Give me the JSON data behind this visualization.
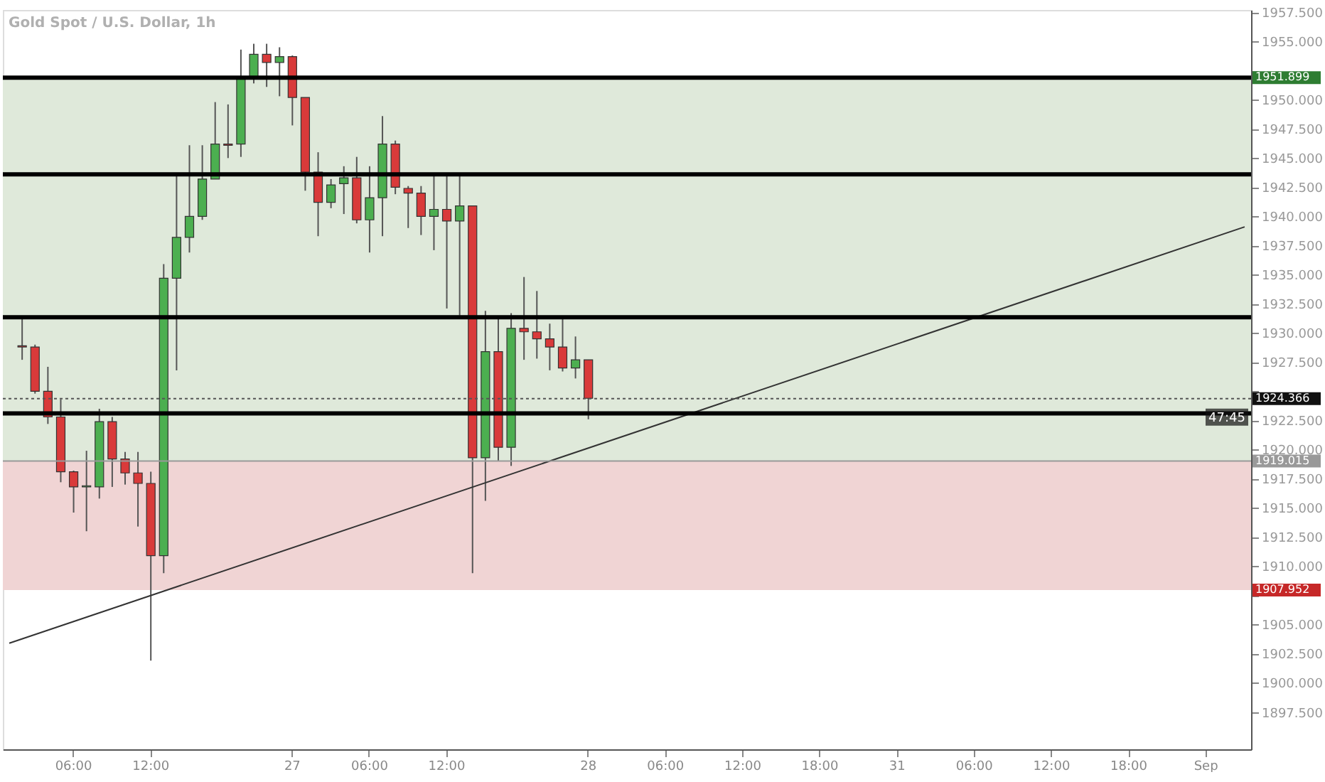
{
  "chart_data": {
    "type": "candlestick",
    "title": "Gold Spot / U.S. Dollar, 1h",
    "categories": [
      null,
      null,
      null,
      null,
      null,
      "06:00",
      null,
      null,
      null,
      null,
      null,
      "12:00",
      null,
      null,
      null,
      null,
      null,
      null,
      null,
      null,
      null,
      null,
      "27",
      null,
      null,
      null,
      null,
      null,
      "06:00",
      null,
      null,
      null,
      null,
      null,
      "12:00",
      null,
      null,
      null,
      null,
      null,
      null,
      null,
      null,
      null,
      null,
      "28",
      null,
      null,
      null,
      null,
      null,
      "06:00",
      null,
      null,
      null,
      null,
      null,
      "12:00",
      null,
      null,
      null,
      null,
      null,
      "18:00",
      null,
      null,
      null,
      null,
      null,
      "31",
      null,
      null,
      null,
      null,
      null,
      "06:00",
      null,
      null,
      null,
      null,
      null,
      "12:00",
      null,
      null,
      null,
      null,
      null,
      "18:00",
      null,
      null,
      null,
      null,
      null,
      "Sep",
      null,
      null,
      null
    ],
    "ohlc": [
      null,
      [
        1928.9,
        1931.3,
        1927.7,
        1928.8
      ],
      [
        1928.8,
        1929.0,
        1924.8,
        1925.0
      ],
      [
        1925.0,
        1927.1,
        1922.2,
        1922.8
      ],
      [
        1922.8,
        1924.3,
        1917.2,
        1918.1
      ],
      [
        1918.1,
        1918.2,
        1914.6,
        1916.8
      ],
      [
        1916.8,
        1919.9,
        1913.0,
        1916.9
      ],
      [
        1916.8,
        1923.5,
        1915.8,
        1922.4
      ],
      [
        1922.4,
        1922.8,
        1916.8,
        1919.2
      ],
      [
        1919.2,
        1919.8,
        1917.0,
        1918.0
      ],
      [
        1918.0,
        1919.8,
        1913.4,
        1917.1
      ],
      [
        1917.1,
        1918.1,
        1901.9,
        1910.9
      ],
      [
        1910.9,
        1935.9,
        1909.4,
        1934.7
      ],
      [
        1934.7,
        1943.7,
        1926.8,
        1938.2
      ],
      [
        1938.2,
        1946.1,
        1936.9,
        1940.0
      ],
      [
        1940.0,
        1946.1,
        1939.7,
        1943.2
      ],
      [
        1943.2,
        1949.8,
        1943.2,
        1946.2
      ],
      [
        1946.2,
        1949.6,
        1945.0,
        1946.1
      ],
      [
        1946.2,
        1954.3,
        1945.1,
        1952.0
      ],
      [
        1952.0,
        1954.8,
        1951.4,
        1953.9
      ],
      [
        1953.9,
        1954.8,
        1951.1,
        1953.2
      ],
      [
        1953.2,
        1954.5,
        1950.3,
        1953.7
      ],
      [
        1953.7,
        1953.8,
        1947.8,
        1950.2
      ],
      [
        1950.2,
        1950.2,
        1942.2,
        1943.8
      ],
      [
        1943.8,
        1945.5,
        1938.3,
        1941.2
      ],
      [
        1941.2,
        1943.2,
        1940.7,
        1942.7
      ],
      [
        1942.8,
        1944.3,
        1940.2,
        1943.3
      ],
      [
        1943.3,
        1945.1,
        1939.4,
        1939.7
      ],
      [
        1939.7,
        1944.3,
        1936.9,
        1941.6
      ],
      [
        1941.6,
        1948.6,
        1938.3,
        1946.2
      ],
      [
        1946.2,
        1946.5,
        1941.9,
        1942.5
      ],
      [
        1942.4,
        1942.6,
        1939.0,
        1942.0
      ],
      [
        1942.0,
        1942.6,
        1938.4,
        1940.0
      ],
      [
        1940.0,
        1943.7,
        1937.1,
        1940.6
      ],
      [
        1940.6,
        1943.7,
        1932.1,
        1939.6
      ],
      [
        1939.6,
        1943.7,
        1931.5,
        1940.9
      ],
      [
        1940.9,
        1940.9,
        1909.4,
        1919.3
      ],
      [
        1919.3,
        1931.9,
        1915.6,
        1928.4
      ],
      [
        1928.4,
        1931.3,
        1919.0,
        1920.2
      ],
      [
        1920.2,
        1931.7,
        1918.6,
        1930.4
      ],
      [
        1930.4,
        1934.8,
        1927.7,
        1930.1
      ],
      [
        1930.1,
        1933.6,
        1927.8,
        1929.5
      ],
      [
        1929.5,
        1930.8,
        1926.8,
        1928.8
      ],
      [
        1928.8,
        1931.3,
        1926.7,
        1927.0
      ],
      [
        1927.0,
        1929.7,
        1926.1,
        1927.7
      ],
      [
        1927.7,
        1927.7,
        1922.6,
        1924.4
      ],
      null,
      null,
      null,
      null,
      null,
      null,
      null,
      null,
      null,
      null,
      null,
      null,
      null,
      null,
      null,
      null,
      null,
      null,
      null,
      null,
      null,
      null,
      null,
      null,
      null,
      null,
      null,
      null,
      null,
      null,
      null,
      null,
      null,
      null,
      null,
      null,
      null,
      null,
      null,
      null,
      null,
      null,
      null,
      null,
      null,
      null,
      null,
      null,
      null,
      null,
      null
    ],
    "colors": [
      null,
      "#d93a3a",
      "#d93a3a",
      "#d93a3a",
      "#d93a3a",
      "#d93a3a",
      "#4caf50",
      "#4caf50",
      "#d93a3a",
      "#d93a3a",
      "#d93a3a",
      "#d93a3a",
      "#4caf50",
      "#4caf50",
      "#4caf50",
      "#4caf50",
      "#4caf50",
      "#d93a3a",
      "#4caf50",
      "#4caf50",
      "#d93a3a",
      "#4caf50",
      "#d93a3a",
      "#d93a3a",
      "#d93a3a",
      "#4caf50",
      "#4caf50",
      "#d93a3a",
      "#4caf50",
      "#4caf50",
      "#d93a3a",
      "#d93a3a",
      "#d93a3a",
      "#4caf50",
      "#d93a3a",
      "#4caf50",
      "#d93a3a",
      "#4caf50",
      "#d93a3a",
      "#4caf50",
      "#d93a3a",
      "#d93a3a",
      "#d93a3a",
      "#d93a3a",
      "#4caf50",
      "#d93a3a",
      null,
      null,
      null,
      null,
      null,
      null,
      null,
      null,
      null,
      null,
      null,
      null,
      null,
      null,
      null,
      null,
      null,
      null,
      null,
      null,
      null,
      null,
      null,
      null,
      null,
      null,
      null,
      null,
      null,
      null,
      null,
      null,
      null,
      null,
      null,
      null,
      null,
      null,
      null,
      null,
      null,
      null,
      null,
      null,
      null,
      null,
      null,
      null,
      null,
      null,
      null
    ],
    "series": [
      {
        "type": "line",
        "color": "#333333",
        "values": [
          1903.4,
          null,
          null,
          null,
          null,
          null,
          null,
          null,
          null,
          null,
          null,
          null,
          null,
          null,
          null,
          null,
          null,
          null,
          null,
          null,
          null,
          null,
          null,
          null,
          null,
          null,
          null,
          null,
          null,
          null,
          null,
          null,
          null,
          null,
          null,
          null,
          null,
          null,
          null,
          null,
          null,
          null,
          null,
          null,
          null,
          null,
          null,
          null,
          null,
          null,
          null,
          null,
          null,
          null,
          null,
          null,
          null,
          null,
          null,
          null,
          null,
          null,
          null,
          null,
          null,
          null,
          null,
          null,
          null,
          null,
          null,
          null,
          null,
          null,
          null,
          null,
          null,
          null,
          null,
          null,
          null,
          null,
          null,
          null,
          null,
          null,
          null,
          null,
          null,
          null,
          null,
          null,
          null,
          null,
          null,
          null,
          1939.1
        ]
      }
    ],
    "ylim": [
      1894.3,
      1957.7
    ],
    "yticks": [
      {
        "value": 1897.5,
        "label": "1897.500"
      },
      {
        "value": 1900,
        "label": "1900.000"
      },
      {
        "value": 1902.5,
        "label": "1902.500"
      },
      {
        "value": 1905,
        "label": "1905.000"
      },
      {
        "value": 1907.5,
        "label": null
      },
      {
        "value": 1910,
        "label": "1910.000"
      },
      {
        "value": 1912.5,
        "label": "1912.500"
      },
      {
        "value": 1915,
        "label": "1915.000"
      },
      {
        "value": 1917.5,
        "label": "1917.500"
      },
      {
        "value": 1920,
        "label": "1920.000"
      },
      {
        "value": 1922.5,
        "label": "1922.500"
      },
      {
        "value": 1925,
        "label": null
      },
      {
        "value": 1927.5,
        "label": "1927.500"
      },
      {
        "value": 1930,
        "label": "1930.000"
      },
      {
        "value": 1932.5,
        "label": "1932.500"
      },
      {
        "value": 1935,
        "label": "1935.000"
      },
      {
        "value": 1937.5,
        "label": "1937.500"
      },
      {
        "value": 1940,
        "label": "1940.000"
      },
      {
        "value": 1942.5,
        "label": "1942.500"
      },
      {
        "value": 1945,
        "label": "1945.000"
      },
      {
        "value": 1947.5,
        "label": "1947.500"
      },
      {
        "value": 1950,
        "label": "1950.000"
      },
      {
        "value": 1952.5,
        "label": null
      },
      {
        "value": 1955,
        "label": "1955.000"
      },
      {
        "value": 1957.5,
        "label": "1957.500"
      }
    ],
    "bands": [
      {
        "axis": "y",
        "from": 1919.015,
        "to": 1951.899,
        "color": "#dfe9da"
      },
      {
        "axis": "y",
        "from": 1907.952,
        "to": 1919.015,
        "color": "#f0d4d4",
        "label": "1907.952"
      }
    ],
    "ref_lines": [
      {
        "axis": "y",
        "value": 1951.899,
        "color": "#000000",
        "label": "1951.899"
      },
      {
        "axis": "y",
        "value": 1943.6,
        "color": "#000000"
      },
      {
        "axis": "y",
        "value": 1931.35,
        "color": "#000000"
      },
      {
        "axis": "y",
        "value": 1923.1,
        "color": "#000000"
      },
      {
        "axis": "y",
        "value": 1924.366,
        "color": "#555555",
        "line_style": "dotted",
        "label": "1924.366"
      },
      {
        "axis": "y",
        "value": 1919.015,
        "color": "#999999",
        "line_style": "solid",
        "label": "1919.015"
      }
    ],
    "annotations": [
      "47:45"
    ]
  }
}
